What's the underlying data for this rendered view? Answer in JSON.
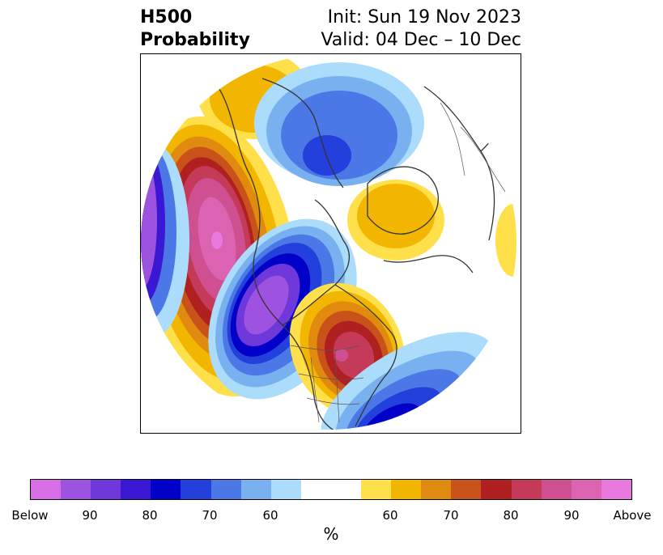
{
  "header": {
    "variable": "H500",
    "product": "Probability",
    "init": "Init: Sun 19 Nov 2023",
    "valid": "Valid: 04 Dec – 10 Dec"
  },
  "colorbar": {
    "unit": "%",
    "colors": [
      "#d86ee6",
      "#9d52e0",
      "#6e38da",
      "#3a17d3",
      "#0000c8",
      "#2340dc",
      "#4c78e7",
      "#78b0f0",
      "#abdcfb",
      "#ffffff",
      "#ffe04a",
      "#f3b600",
      "#e08a10",
      "#c8521a",
      "#b02020",
      "#c43a58",
      "#cf5090",
      "#dc62b2",
      "#e878de"
    ],
    "tick_labels": [
      "Below",
      "90",
      "80",
      "70",
      "60",
      "60",
      "70",
      "80",
      "90",
      "Above"
    ]
  }
}
